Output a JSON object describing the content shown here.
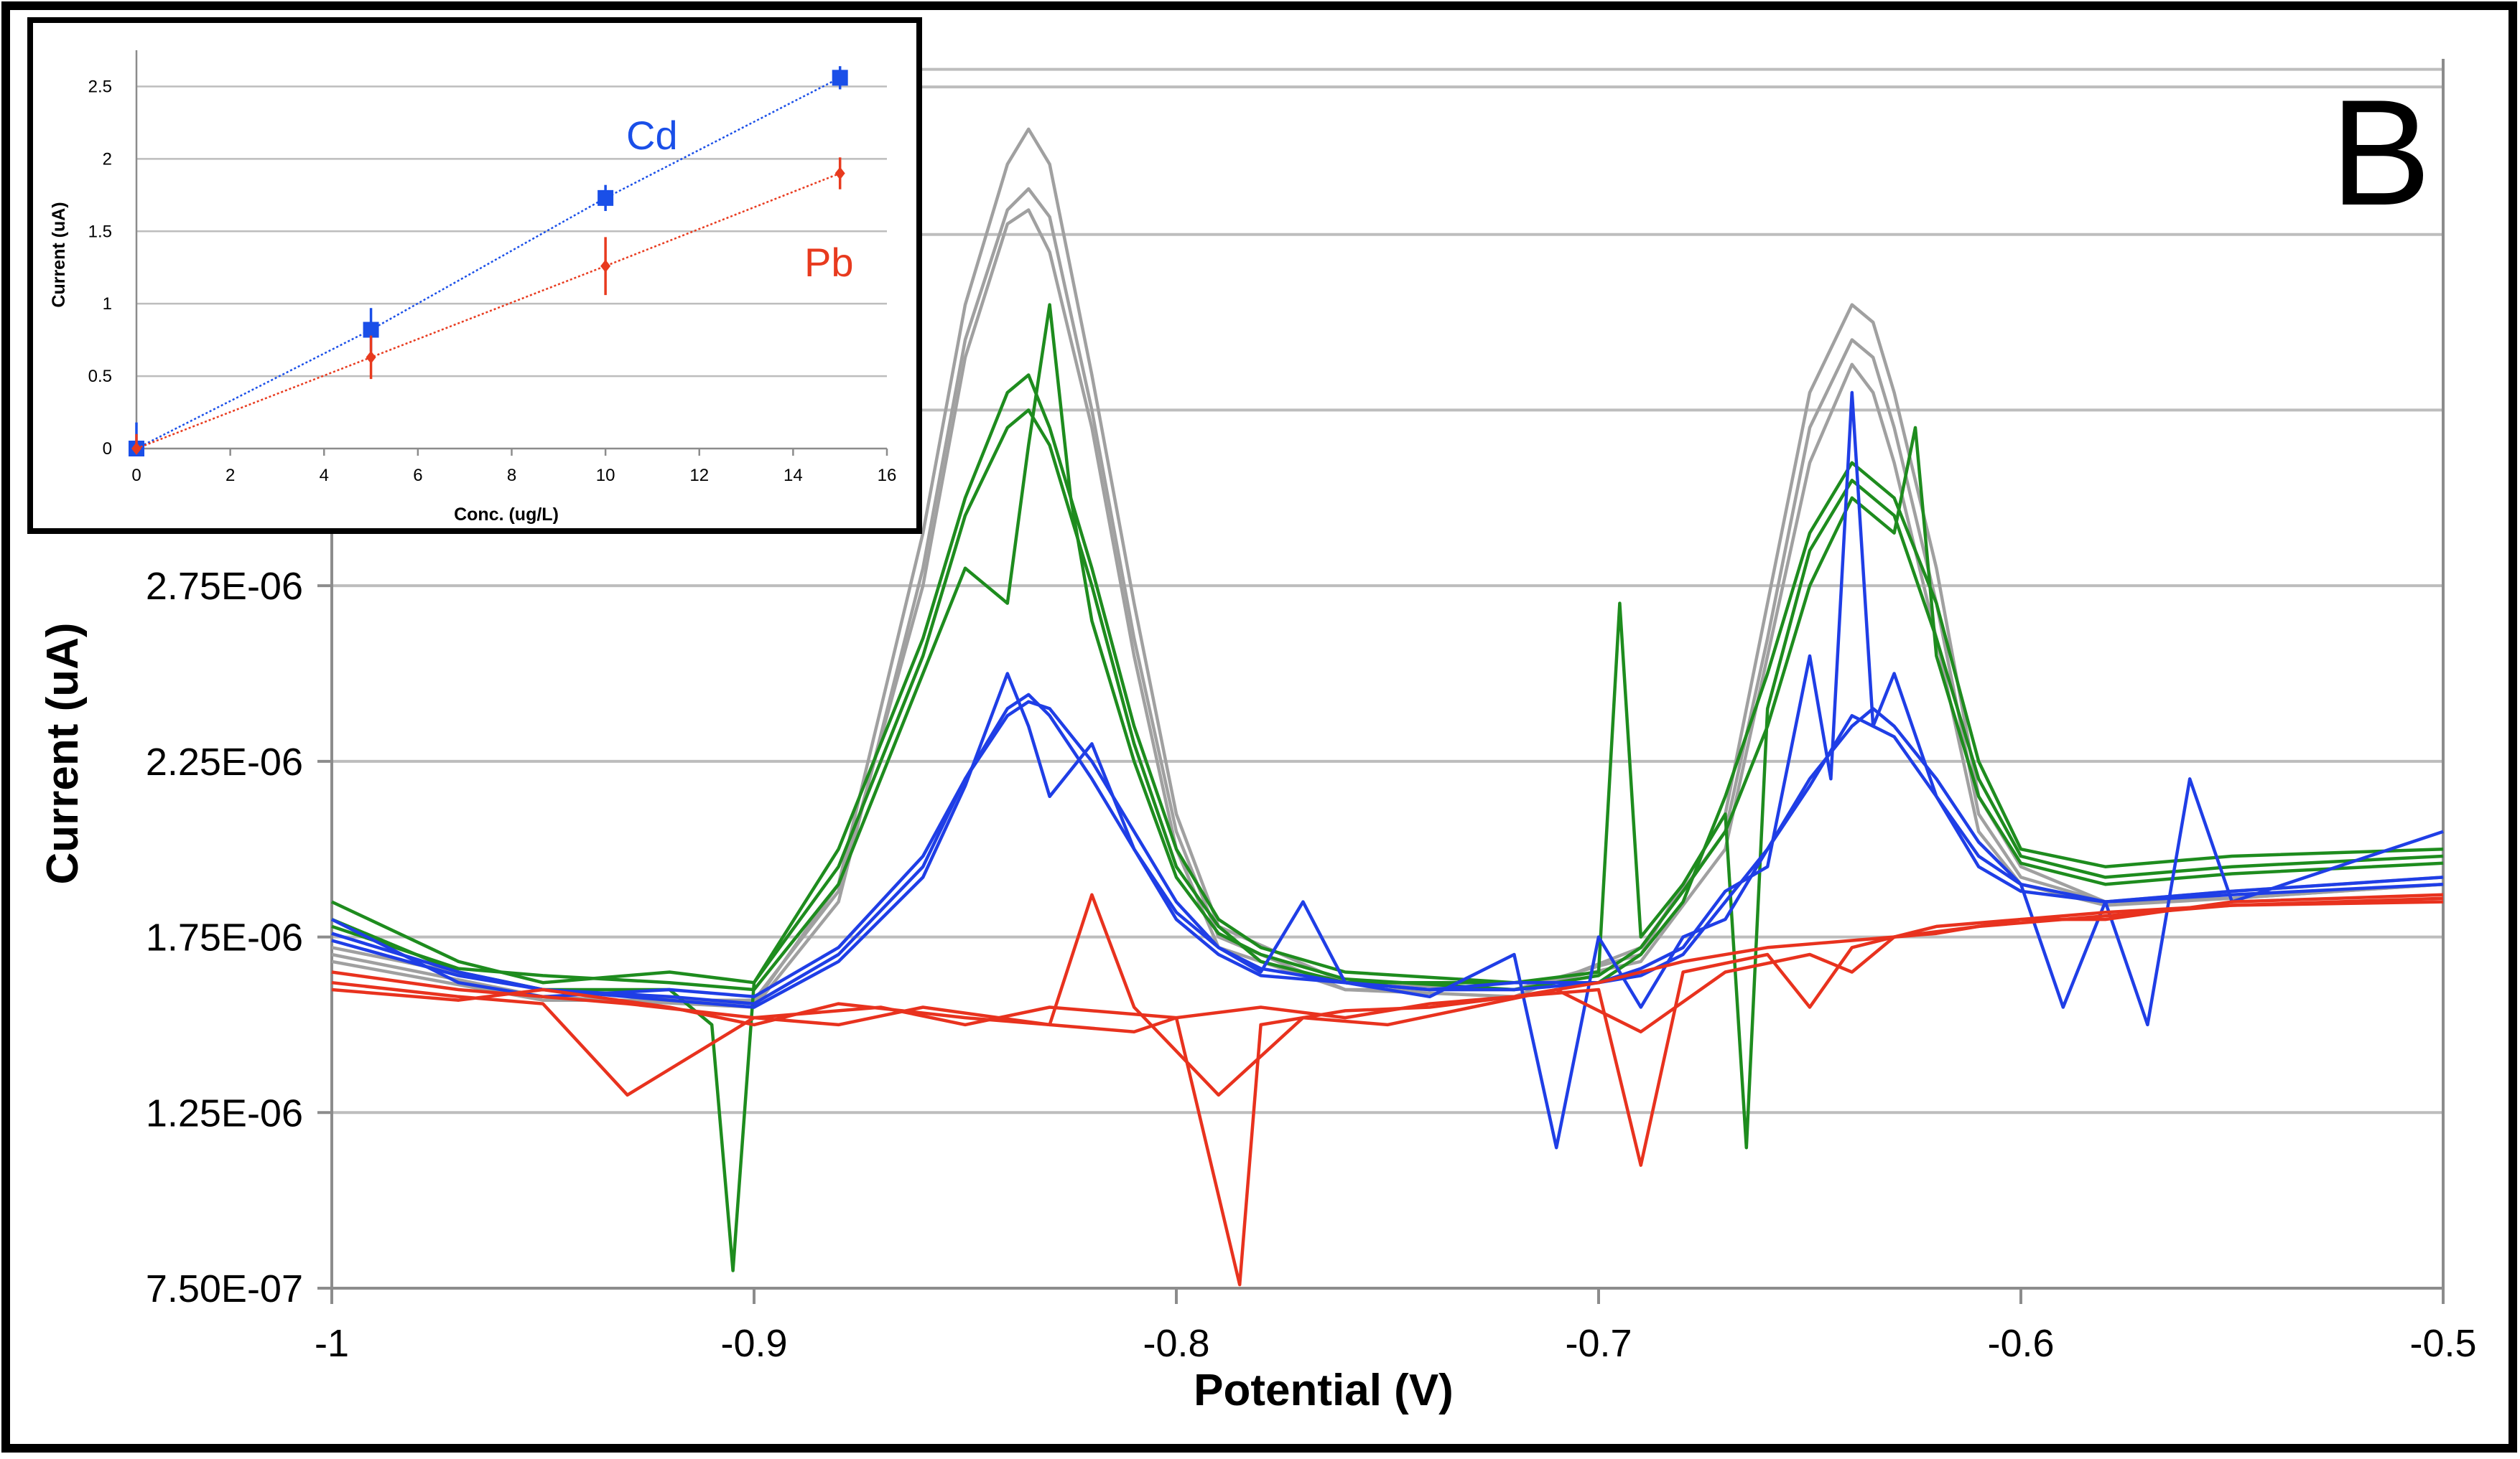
{
  "panel_label": "B",
  "colors": {
    "gray": "#a0a0a0",
    "green": "#1e8c1e",
    "blue": "#1f3ee6",
    "red": "#e8321e",
    "inset_cd": "#1a4fe8",
    "inset_pb": "#e83a1e",
    "grid": "#bdbdbd"
  },
  "chart_data": [
    {
      "id": "main",
      "type": "line",
      "title": "",
      "xlabel": "Potential (V)",
      "ylabel": "Current (uA)",
      "xlim": [
        -1.0,
        -0.5
      ],
      "ylim": [
        7.5e-07,
        4.25e-06
      ],
      "x_ticks": [
        -1.0,
        -0.9,
        -0.8,
        -0.7,
        -0.6,
        -0.5
      ],
      "x_tick_labels": [
        "-1",
        "-0.9",
        "-0.8",
        "-0.7",
        "-0.6",
        "-0.5"
      ],
      "y_ticks": [
        7.5e-07,
        1.25e-06,
        1.75e-06,
        2.25e-06,
        2.75e-06
      ],
      "y_tick_labels": [
        "7.50E-07",
        "1.25E-06",
        "1.75E-06",
        "2.25E-06",
        "2.75E-06"
      ],
      "grid_y_values": [
        7.5e-07,
        1.25e-06,
        1.75e-06,
        2.25e-06,
        2.75e-06,
        3.25e-06,
        3.75e-06,
        4.17e-06,
        4.22e-06
      ],
      "series": [
        {
          "name": "gray-1",
          "color_key": "gray",
          "x": [
            -1.0,
            -0.95,
            -0.9,
            -0.88,
            -0.86,
            -0.85,
            -0.84,
            -0.835,
            -0.83,
            -0.82,
            -0.81,
            -0.8,
            -0.79,
            -0.76,
            -0.72,
            -0.69,
            -0.67,
            -0.66,
            -0.65,
            -0.64,
            -0.635,
            -0.63,
            -0.62,
            -0.61,
            -0.6,
            -0.58,
            -0.55,
            -0.5
          ],
          "y": [
            1.72e-06,
            1.6e-06,
            1.56e-06,
            1.9e-06,
            2.9e-06,
            3.55e-06,
            3.95e-06,
            4.05e-06,
            3.95e-06,
            3.35e-06,
            2.7e-06,
            2.1e-06,
            1.78e-06,
            1.62e-06,
            1.6e-06,
            1.7e-06,
            2.1e-06,
            2.7e-06,
            3.3e-06,
            3.55e-06,
            3.5e-06,
            3.3e-06,
            2.8e-06,
            2.15e-06,
            1.95e-06,
            1.85e-06,
            1.88e-06,
            1.92e-06
          ]
        },
        {
          "name": "gray-2",
          "color_key": "gray",
          "x": [
            -1.0,
            -0.95,
            -0.9,
            -0.88,
            -0.86,
            -0.85,
            -0.84,
            -0.835,
            -0.83,
            -0.82,
            -0.81,
            -0.8,
            -0.79,
            -0.76,
            -0.72,
            -0.69,
            -0.67,
            -0.66,
            -0.65,
            -0.64,
            -0.635,
            -0.63,
            -0.62,
            -0.61,
            -0.6,
            -0.58,
            -0.55,
            -0.5
          ],
          "y": [
            1.7e-06,
            1.58e-06,
            1.55e-06,
            1.85e-06,
            2.8e-06,
            3.45e-06,
            3.82e-06,
            3.88e-06,
            3.8e-06,
            3.25e-06,
            2.6e-06,
            2.05e-06,
            1.75e-06,
            1.6e-06,
            1.58e-06,
            1.72e-06,
            2.05e-06,
            2.6e-06,
            3.2e-06,
            3.45e-06,
            3.4e-06,
            3.2e-06,
            2.7e-06,
            2.1e-06,
            1.92e-06,
            1.85e-06,
            1.86e-06,
            1.9e-06
          ]
        },
        {
          "name": "gray-3",
          "color_key": "gray",
          "x": [
            -1.0,
            -0.95,
            -0.9,
            -0.88,
            -0.86,
            -0.85,
            -0.84,
            -0.835,
            -0.83,
            -0.82,
            -0.81,
            -0.8,
            -0.79,
            -0.76,
            -0.72,
            -0.69,
            -0.67,
            -0.66,
            -0.65,
            -0.64,
            -0.635,
            -0.63,
            -0.62,
            -0.61,
            -0.6,
            -0.58,
            -0.55,
            -0.5
          ],
          "y": [
            1.68e-06,
            1.57e-06,
            1.57e-06,
            1.88e-06,
            2.75e-06,
            3.4e-06,
            3.78e-06,
            3.82e-06,
            3.7e-06,
            3.2e-06,
            2.55e-06,
            2e-06,
            1.72e-06,
            1.6e-06,
            1.6e-06,
            1.68e-06,
            2e-06,
            2.55e-06,
            3.1e-06,
            3.38e-06,
            3.3e-06,
            3.1e-06,
            2.6e-06,
            2.05e-06,
            1.9e-06,
            1.84e-06,
            1.86e-06,
            1.9e-06
          ]
        },
        {
          "name": "green-1",
          "color_key": "green",
          "x": [
            -1.0,
            -0.97,
            -0.95,
            -0.92,
            -0.9,
            -0.88,
            -0.86,
            -0.85,
            -0.84,
            -0.835,
            -0.83,
            -0.82,
            -0.81,
            -0.8,
            -0.79,
            -0.78,
            -0.76,
            -0.72,
            -0.7,
            -0.69,
            -0.68,
            -0.67,
            -0.66,
            -0.65,
            -0.64,
            -0.63,
            -0.62,
            -0.61,
            -0.6,
            -0.58,
            -0.55,
            -0.5
          ],
          "y": [
            1.85e-06,
            1.68e-06,
            1.62e-06,
            1.65e-06,
            1.62e-06,
            2e-06,
            2.6e-06,
            3e-06,
            3.3e-06,
            3.35e-06,
            3.2e-06,
            2.8e-06,
            2.35e-06,
            2e-06,
            1.8e-06,
            1.72e-06,
            1.65e-06,
            1.62e-06,
            1.62e-06,
            1.7e-06,
            1.85e-06,
            2.15e-06,
            2.5e-06,
            2.9e-06,
            3.1e-06,
            3e-06,
            2.7e-06,
            2.25e-06,
            2e-06,
            1.95e-06,
            1.98e-06,
            2e-06
          ]
        },
        {
          "name": "green-2",
          "color_key": "green",
          "x": [
            -1.0,
            -0.97,
            -0.95,
            -0.92,
            -0.91,
            -0.905,
            -0.9,
            -0.88,
            -0.86,
            -0.85,
            -0.84,
            -0.835,
            -0.83,
            -0.82,
            -0.81,
            -0.8,
            -0.79,
            -0.78,
            -0.76,
            -0.72,
            -0.7,
            -0.695,
            -0.69,
            -0.68,
            -0.67,
            -0.665,
            -0.66,
            -0.65,
            -0.64,
            -0.63,
            -0.62,
            -0.61,
            -0.6,
            -0.58,
            -0.55,
            -0.5
          ],
          "y": [
            1.8e-06,
            1.65e-06,
            1.6e-06,
            1.6e-06,
            1.5e-06,
            8e-07,
            1.62e-06,
            1.95e-06,
            2.55e-06,
            2.95e-06,
            3.2e-06,
            3.25e-06,
            3.15e-06,
            2.75e-06,
            2.3e-06,
            1.95e-06,
            1.78e-06,
            1.68e-06,
            1.62e-06,
            1.62e-06,
            1.65e-06,
            2.7e-06,
            1.75e-06,
            1.9e-06,
            2.1e-06,
            1.15e-06,
            2.4e-06,
            2.85e-06,
            3.05e-06,
            2.95e-06,
            2.6e-06,
            2.2e-06,
            1.98e-06,
            1.92e-06,
            1.95e-06,
            1.98e-06
          ]
        },
        {
          "name": "green-3",
          "color_key": "green",
          "x": [
            -1.0,
            -0.97,
            -0.95,
            -0.92,
            -0.9,
            -0.88,
            -0.86,
            -0.85,
            -0.84,
            -0.835,
            -0.83,
            -0.825,
            -0.82,
            -0.81,
            -0.8,
            -0.79,
            -0.78,
            -0.76,
            -0.72,
            -0.7,
            -0.69,
            -0.68,
            -0.67,
            -0.66,
            -0.65,
            -0.64,
            -0.63,
            -0.625,
            -0.62,
            -0.61,
            -0.6,
            -0.58,
            -0.55,
            -0.5
          ],
          "y": [
            1.78e-06,
            1.66e-06,
            1.64e-06,
            1.62e-06,
            1.6e-06,
            1.9e-06,
            2.5e-06,
            2.8e-06,
            2.7e-06,
            3.15e-06,
            3.55e-06,
            3e-06,
            2.65e-06,
            2.25e-06,
            1.92e-06,
            1.76e-06,
            1.7e-06,
            1.63e-06,
            1.6e-06,
            1.64e-06,
            1.72e-06,
            1.88e-06,
            2.05e-06,
            2.35e-06,
            2.75e-06,
            3e-06,
            2.9e-06,
            3.2e-06,
            2.55e-06,
            2.15e-06,
            1.96e-06,
            1.9e-06,
            1.93e-06,
            1.96e-06
          ]
        },
        {
          "name": "blue-1",
          "color_key": "blue",
          "x": [
            -1.0,
            -0.97,
            -0.95,
            -0.92,
            -0.9,
            -0.88,
            -0.86,
            -0.85,
            -0.84,
            -0.835,
            -0.83,
            -0.82,
            -0.81,
            -0.8,
            -0.79,
            -0.78,
            -0.76,
            -0.74,
            -0.72,
            -0.7,
            -0.69,
            -0.68,
            -0.67,
            -0.66,
            -0.65,
            -0.64,
            -0.635,
            -0.63,
            -0.62,
            -0.61,
            -0.6,
            -0.58,
            -0.55,
            -0.5
          ],
          "y": [
            1.76e-06,
            1.65e-06,
            1.6e-06,
            1.58e-06,
            1.56e-06,
            1.7e-06,
            1.95e-06,
            2.2e-06,
            2.38e-06,
            2.42e-06,
            2.4e-06,
            2.25e-06,
            2.05e-06,
            1.85e-06,
            1.72e-06,
            1.66e-06,
            1.62e-06,
            1.6e-06,
            1.62e-06,
            1.62e-06,
            1.64e-06,
            1.7e-06,
            1.85e-06,
            2e-06,
            2.2e-06,
            2.35e-06,
            2.4e-06,
            2.35e-06,
            2.2e-06,
            2.02e-06,
            1.9e-06,
            1.85e-06,
            1.87e-06,
            1.9e-06
          ]
        },
        {
          "name": "blue-2",
          "color_key": "blue",
          "x": [
            -1.0,
            -0.97,
            -0.95,
            -0.92,
            -0.9,
            -0.88,
            -0.86,
            -0.85,
            -0.84,
            -0.835,
            -0.83,
            -0.82,
            -0.81,
            -0.8,
            -0.79,
            -0.78,
            -0.76,
            -0.74,
            -0.72,
            -0.7,
            -0.69,
            -0.68,
            -0.67,
            -0.66,
            -0.65,
            -0.645,
            -0.64,
            -0.635,
            -0.63,
            -0.62,
            -0.61,
            -0.6,
            -0.58,
            -0.55,
            -0.5
          ],
          "y": [
            1.74e-06,
            1.64e-06,
            1.6e-06,
            1.57e-06,
            1.55e-06,
            1.68e-06,
            1.92e-06,
            2.18e-06,
            2.5e-06,
            2.35e-06,
            2.15e-06,
            2.3e-06,
            2e-06,
            1.8e-06,
            1.7e-06,
            1.64e-06,
            1.62e-06,
            1.6e-06,
            1.6e-06,
            1.62e-06,
            1.66e-06,
            1.72e-06,
            1.88e-06,
            1.95e-06,
            2.55e-06,
            2.2e-06,
            3.3e-06,
            2.35e-06,
            2.5e-06,
            2.15e-06,
            1.95e-06,
            1.88e-06,
            1.85e-06,
            1.88e-06,
            1.92e-06
          ]
        },
        {
          "name": "blue-3",
          "color_key": "blue",
          "x": [
            -1.0,
            -0.97,
            -0.95,
            -0.92,
            -0.9,
            -0.88,
            -0.86,
            -0.85,
            -0.84,
            -0.835,
            -0.83,
            -0.82,
            -0.81,
            -0.8,
            -0.79,
            -0.78,
            -0.77,
            -0.76,
            -0.74,
            -0.72,
            -0.71,
            -0.7,
            -0.69,
            -0.68,
            -0.67,
            -0.66,
            -0.65,
            -0.64,
            -0.63,
            -0.62,
            -0.61,
            -0.6,
            -0.59,
            -0.58,
            -0.57,
            -0.56,
            -0.55,
            -0.5
          ],
          "y": [
            1.8e-06,
            1.62e-06,
            1.58e-06,
            1.6e-06,
            1.58e-06,
            1.72e-06,
            1.98e-06,
            2.2e-06,
            2.4e-06,
            2.44e-06,
            2.38e-06,
            2.2e-06,
            2e-06,
            1.82e-06,
            1.72e-06,
            1.65e-06,
            1.85e-06,
            1.62e-06,
            1.58e-06,
            1.7e-06,
            1.15e-06,
            1.75e-06,
            1.55e-06,
            1.75e-06,
            1.8e-06,
            2e-06,
            2.18e-06,
            2.38e-06,
            2.32e-06,
            2.15e-06,
            1.98e-06,
            1.9e-06,
            1.55e-06,
            1.85e-06,
            1.5e-06,
            2.2e-06,
            1.85e-06,
            2.05e-06
          ]
        },
        {
          "name": "red-1",
          "color_key": "red",
          "x": [
            -1.0,
            -0.97,
            -0.95,
            -0.93,
            -0.9,
            -0.87,
            -0.85,
            -0.83,
            -0.8,
            -0.78,
            -0.76,
            -0.74,
            -0.72,
            -0.7,
            -0.68,
            -0.66,
            -0.64,
            -0.62,
            -0.6,
            -0.58,
            -0.55,
            -0.5
          ],
          "y": [
            1.65e-06,
            1.6e-06,
            1.58e-06,
            1.56e-06,
            1.52e-06,
            1.55e-06,
            1.5e-06,
            1.55e-06,
            1.52e-06,
            1.55e-06,
            1.52e-06,
            1.56e-06,
            1.58e-06,
            1.62e-06,
            1.68e-06,
            1.72e-06,
            1.74e-06,
            1.76e-06,
            1.8e-06,
            1.82e-06,
            1.84e-06,
            1.86e-06
          ]
        },
        {
          "name": "red-2",
          "color_key": "red",
          "x": [
            -1.0,
            -0.97,
            -0.95,
            -0.93,
            -0.9,
            -0.88,
            -0.86,
            -0.83,
            -0.81,
            -0.8,
            -0.785,
            -0.78,
            -0.76,
            -0.74,
            -0.72,
            -0.7,
            -0.69,
            -0.68,
            -0.66,
            -0.65,
            -0.64,
            -0.62,
            -0.6,
            -0.58,
            -0.55,
            -0.5
          ],
          "y": [
            1.62e-06,
            1.58e-06,
            1.56e-06,
            1.3e-06,
            1.52e-06,
            1.5e-06,
            1.55e-06,
            1.5e-06,
            1.48e-06,
            1.52e-06,
            7.6e-07,
            1.5e-06,
            1.54e-06,
            1.55e-06,
            1.58e-06,
            1.6e-06,
            1.1e-06,
            1.65e-06,
            1.7e-06,
            1.55e-06,
            1.72e-06,
            1.78e-06,
            1.8e-06,
            1.8e-06,
            1.85e-06,
            1.87e-06
          ]
        },
        {
          "name": "red-3",
          "color_key": "red",
          "x": [
            -1.0,
            -0.97,
            -0.95,
            -0.92,
            -0.9,
            -0.88,
            -0.85,
            -0.83,
            -0.82,
            -0.81,
            -0.79,
            -0.77,
            -0.75,
            -0.73,
            -0.71,
            -0.69,
            -0.67,
            -0.65,
            -0.64,
            -0.63,
            -0.61,
            -0.59,
            -0.57,
            -0.55,
            -0.5
          ],
          "y": [
            1.6e-06,
            1.57e-06,
            1.6e-06,
            1.55e-06,
            1.5e-06,
            1.56e-06,
            1.52e-06,
            1.5e-06,
            1.87e-06,
            1.55e-06,
            1.3e-06,
            1.52e-06,
            1.5e-06,
            1.55e-06,
            1.6e-06,
            1.48e-06,
            1.65e-06,
            1.7e-06,
            1.65e-06,
            1.75e-06,
            1.78e-06,
            1.8e-06,
            1.82e-06,
            1.84e-06,
            1.85e-06
          ]
        }
      ]
    },
    {
      "id": "inset",
      "type": "scatter",
      "title": "",
      "xlabel": "Conc. (ug/L)",
      "ylabel": "Current (uA)",
      "xlim": [
        0,
        16
      ],
      "ylim": [
        0,
        2.75
      ],
      "x_ticks": [
        0,
        2,
        4,
        6,
        8,
        10,
        12,
        14,
        16
      ],
      "x_tick_labels": [
        "0",
        "2",
        "4",
        "6",
        "8",
        "10",
        "12",
        "14",
        "16"
      ],
      "y_ticks": [
        0,
        0.5,
        1,
        1.5,
        2,
        2.5
      ],
      "y_tick_labels": [
        "0",
        "0.5",
        "1",
        "1.5",
        "2",
        "2.5"
      ],
      "series": [
        {
          "name": "Cd",
          "label": "Cd",
          "color_key": "inset_cd",
          "marker": "square",
          "x": [
            0,
            5,
            10,
            15
          ],
          "y": [
            0,
            0.82,
            1.73,
            2.56
          ],
          "err": [
            0.18,
            0.15,
            0.09,
            0.08
          ]
        },
        {
          "name": "Pb",
          "label": "Pb",
          "color_key": "inset_pb",
          "marker": "diamond",
          "x": [
            0,
            5,
            10,
            15
          ],
          "y": [
            0,
            0.63,
            1.26,
            1.9
          ],
          "err": [
            0.1,
            0.15,
            0.2,
            0.11
          ]
        }
      ]
    }
  ]
}
